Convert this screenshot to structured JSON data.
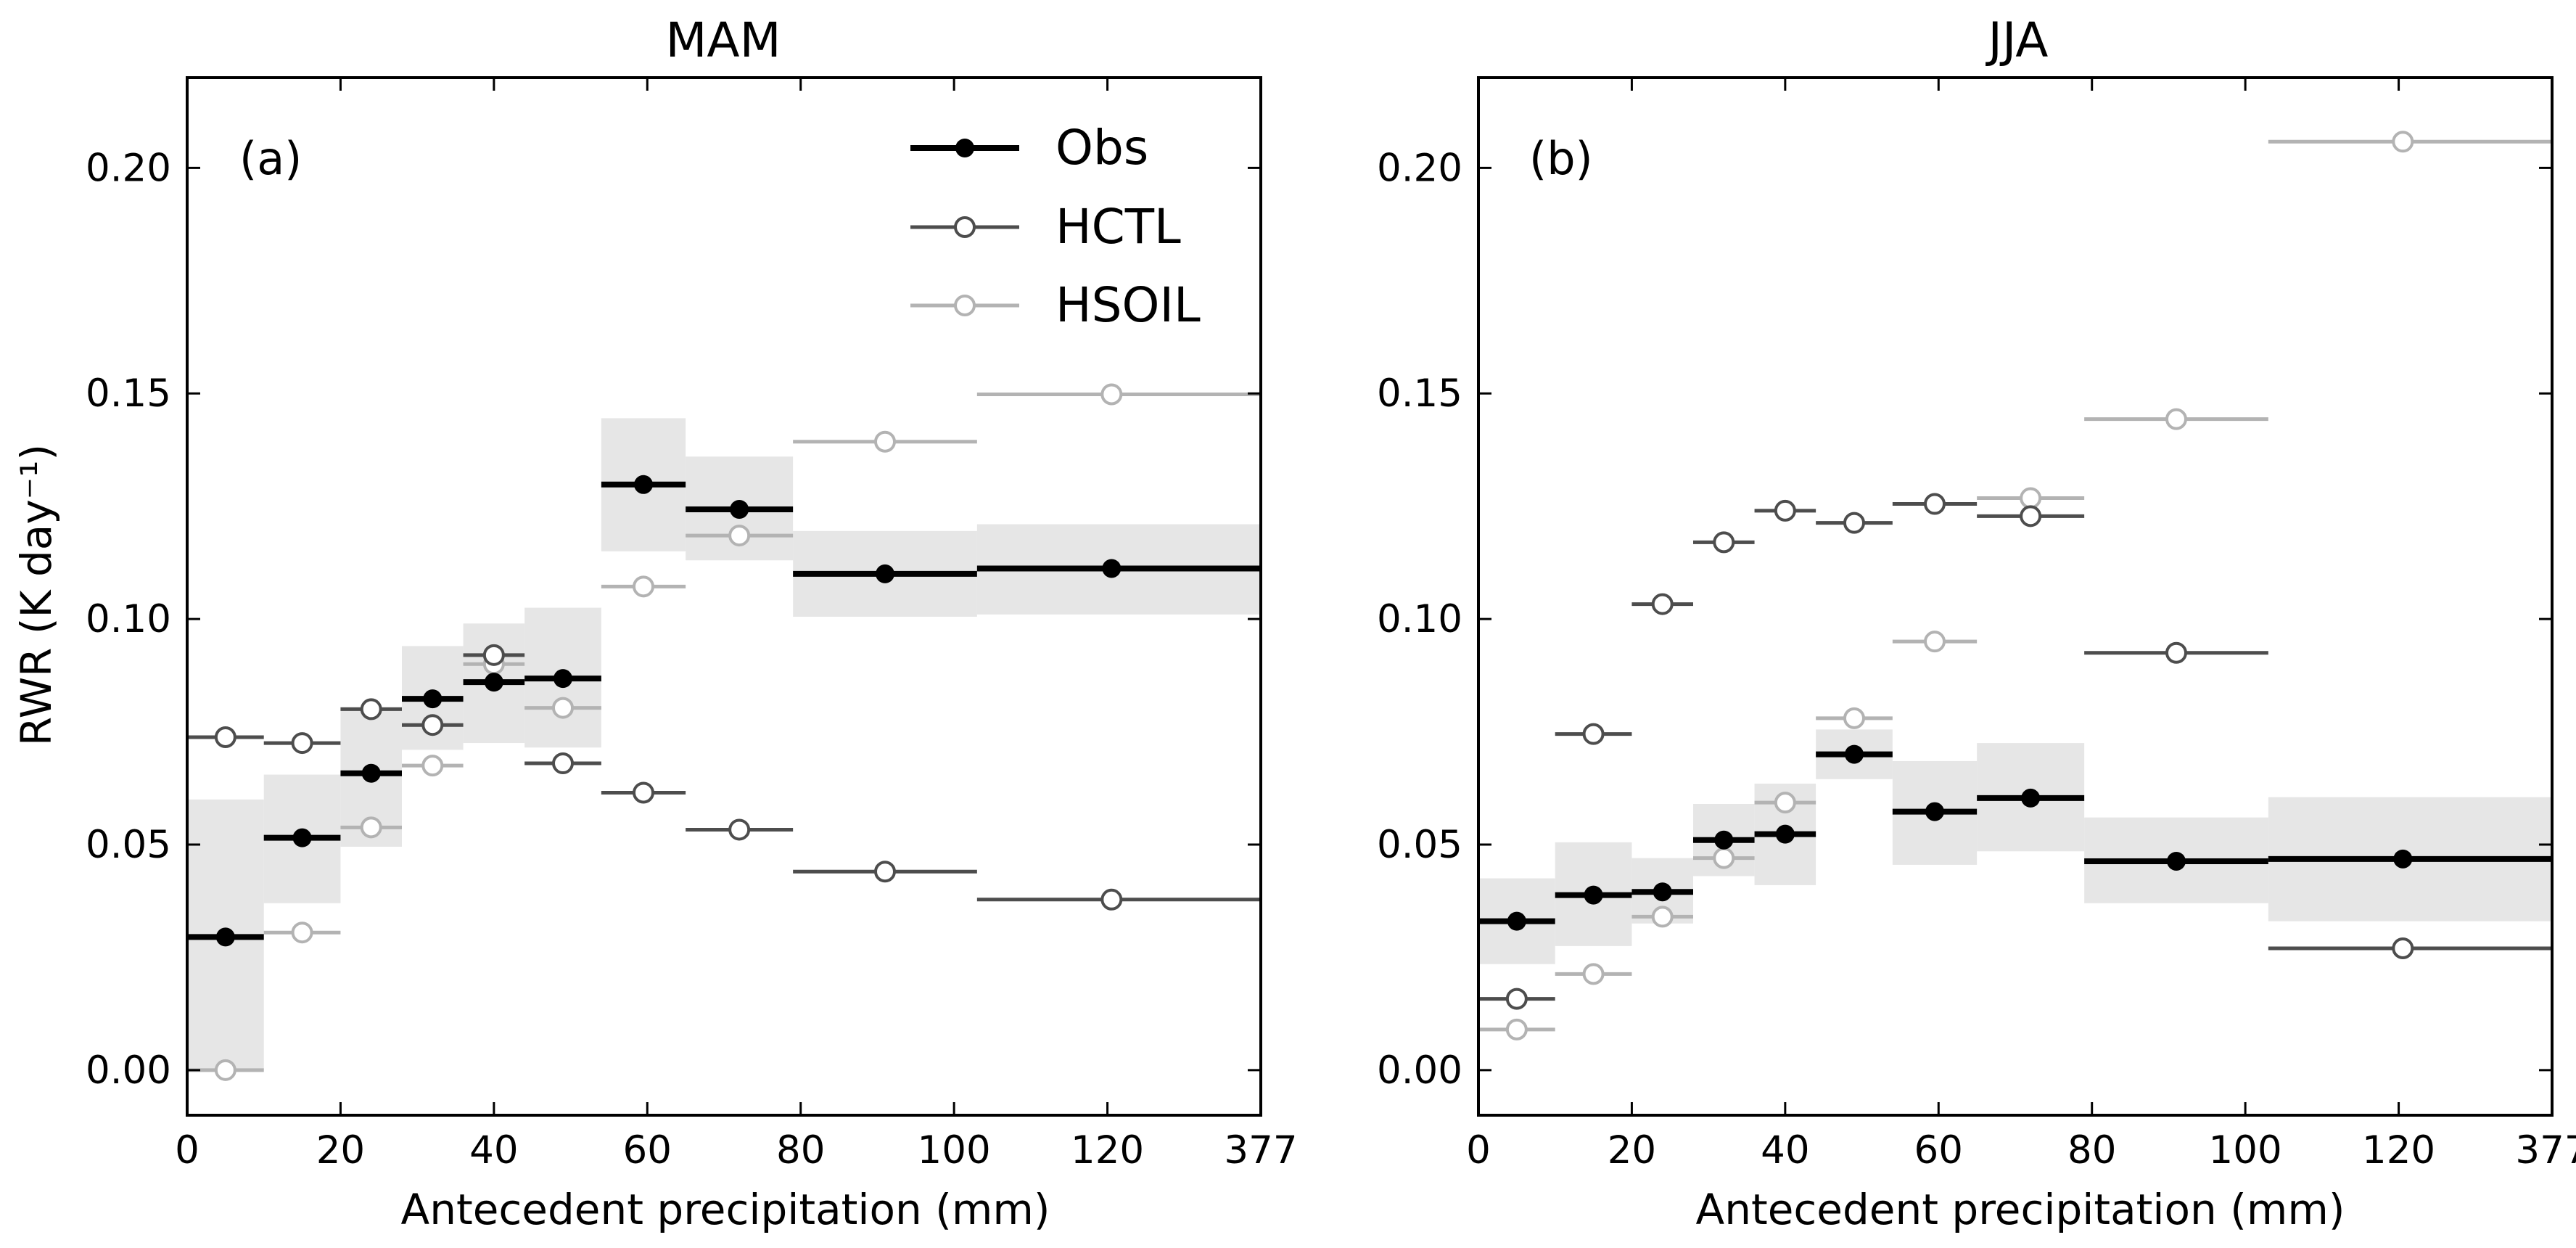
{
  "chart_data": [
    {
      "type": "line",
      "title": "MAM",
      "panel_label": "(a)",
      "xlabel": "Antecedent precipitation (mm)",
      "ylabel": "RWR (K day⁻¹)",
      "ylim": [
        -0.01,
        0.22
      ],
      "xticks": [
        "0",
        "20",
        "40",
        "60",
        "80",
        "100",
        "120",
        "377"
      ],
      "yticks": [
        "0.00",
        "0.05",
        "0.10",
        "0.15",
        "0.20"
      ],
      "grid": false,
      "legend_position": "top-right",
      "bins": [
        {
          "x": [
            0,
            10
          ],
          "obs": 0.0295,
          "obs_band": [
            0.0,
            0.06
          ],
          "hctl": 0.0738,
          "hsoil": 0.0
        },
        {
          "x": [
            10,
            20
          ],
          "obs": 0.0515,
          "obs_band": [
            0.037,
            0.0655
          ],
          "hctl": 0.0725,
          "hsoil": 0.0305
        },
        {
          "x": [
            20,
            28
          ],
          "obs": 0.0658,
          "obs_band": [
            0.0495,
            0.0805
          ],
          "hctl": 0.08,
          "hsoil": 0.0538
        },
        {
          "x": [
            28,
            36
          ],
          "obs": 0.0823,
          "obs_band": [
            0.071,
            0.094
          ],
          "hctl": 0.0765,
          "hsoil": 0.0675
        },
        {
          "x": [
            36,
            44
          ],
          "obs": 0.086,
          "obs_band": [
            0.0725,
            0.099
          ],
          "hctl": 0.092,
          "hsoil": 0.09
        },
        {
          "x": [
            44,
            54
          ],
          "obs": 0.0868,
          "obs_band": [
            0.0715,
            0.1025
          ],
          "hctl": 0.068,
          "hsoil": 0.0803
        },
        {
          "x": [
            54,
            65
          ],
          "obs": 0.1298,
          "obs_band": [
            0.115,
            0.1445
          ],
          "hctl": 0.0615,
          "hsoil": 0.1072
        },
        {
          "x": [
            65,
            79
          ],
          "obs": 0.1243,
          "obs_band": [
            0.113,
            0.136
          ],
          "hctl": 0.0533,
          "hsoil": 0.1185
        },
        {
          "x": [
            79,
            103
          ],
          "obs": 0.11,
          "obs_band": [
            0.1005,
            0.1195
          ],
          "hctl": 0.044,
          "hsoil": 0.1393
        },
        {
          "x": [
            103,
            377
          ],
          "obs": 0.1112,
          "obs_band": [
            0.101,
            0.121
          ],
          "hctl": 0.0378,
          "hsoil": 0.1498
        }
      ],
      "series": [
        {
          "name": "Obs",
          "color": "#000000",
          "marker": "filled-circle"
        },
        {
          "name": "HCTL",
          "color": "#4d4d4d",
          "marker": "open-circle"
        },
        {
          "name": "HSOIL",
          "color": "#b3b3b3",
          "marker": "open-circle"
        }
      ]
    },
    {
      "type": "line",
      "title": "JJA",
      "panel_label": "(b)",
      "xlabel": "Antecedent precipitation (mm)",
      "ylabel": "",
      "ylim": [
        -0.01,
        0.22
      ],
      "xticks": [
        "0",
        "20",
        "40",
        "60",
        "80",
        "100",
        "120",
        "377"
      ],
      "yticks": [
        "0.00",
        "0.05",
        "0.10",
        "0.15",
        "0.20"
      ],
      "grid": false,
      "bins": [
        {
          "x": [
            0,
            10
          ],
          "obs": 0.033,
          "obs_band": [
            0.0235,
            0.0425
          ],
          "hctl": 0.0158,
          "hsoil": 0.009
        },
        {
          "x": [
            10,
            20
          ],
          "obs": 0.0388,
          "obs_band": [
            0.0275,
            0.0505
          ],
          "hctl": 0.0745,
          "hsoil": 0.0213
        },
        {
          "x": [
            20,
            28
          ],
          "obs": 0.0395,
          "obs_band": [
            0.0325,
            0.047
          ],
          "hctl": 0.1033,
          "hsoil": 0.034
        },
        {
          "x": [
            28,
            36
          ],
          "obs": 0.051,
          "obs_band": [
            0.043,
            0.059
          ],
          "hctl": 0.117,
          "hsoil": 0.047
        },
        {
          "x": [
            36,
            44
          ],
          "obs": 0.0523,
          "obs_band": [
            0.041,
            0.0635
          ],
          "hctl": 0.124,
          "hsoil": 0.0593
        },
        {
          "x": [
            44,
            54
          ],
          "obs": 0.07,
          "obs_band": [
            0.0645,
            0.0755
          ],
          "hctl": 0.1213,
          "hsoil": 0.078
        },
        {
          "x": [
            54,
            65
          ],
          "obs": 0.0573,
          "obs_band": [
            0.0455,
            0.0685
          ],
          "hctl": 0.1255,
          "hsoil": 0.095
        },
        {
          "x": [
            65,
            79
          ],
          "obs": 0.0603,
          "obs_band": [
            0.0485,
            0.0725
          ],
          "hctl": 0.1228,
          "hsoil": 0.1268
        },
        {
          "x": [
            79,
            103
          ],
          "obs": 0.0463,
          "obs_band": [
            0.037,
            0.056
          ],
          "hctl": 0.0925,
          "hsoil": 0.1443
        },
        {
          "x": [
            103,
            377
          ],
          "obs": 0.0468,
          "obs_band": [
            0.033,
            0.0605
          ],
          "hctl": 0.027,
          "hsoil": 0.2058
        }
      ],
      "series": [
        {
          "name": "Obs",
          "color": "#000000",
          "marker": "filled-circle"
        },
        {
          "name": "HCTL",
          "color": "#4d4d4d",
          "marker": "open-circle"
        },
        {
          "name": "HSOIL",
          "color": "#b3b3b3",
          "marker": "open-circle"
        }
      ]
    }
  ],
  "legend": {
    "obs_label": "Obs",
    "hctl_label": "HCTL",
    "hsoil_label": "HSOIL"
  },
  "colors": {
    "obs": "#000000",
    "hctl": "#4d4d4d",
    "hsoil": "#b3b3b3",
    "band": "#e6e6e6"
  }
}
